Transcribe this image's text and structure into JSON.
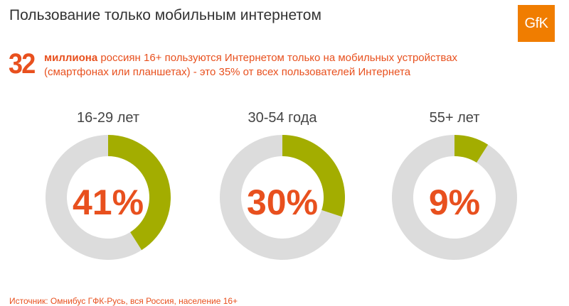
{
  "header": {
    "title": "Пользование только мобильным интернетом",
    "logo_text": "GfK"
  },
  "lead": {
    "number": "32",
    "strong": "миллиона",
    "text_line1": " россиян 16+ пользуются Интернетом только на мобильных устройствах",
    "text_line2": "(смартфонах или планшетах) - это 35% от всех пользователей Интернета"
  },
  "chart_data": {
    "type": "pie",
    "subtype": "donut",
    "charts": [
      {
        "category": "16-29 лет",
        "value": 41,
        "label": "41%"
      },
      {
        "category": "30-54 года",
        "value": 30,
        "label": "30%"
      },
      {
        "category": "55+ лет",
        "value": 9,
        "label": "9%"
      }
    ],
    "colors": {
      "value": "#a3ad00",
      "remainder": "#dcdcdc",
      "label": "#e8501e"
    }
  },
  "footer": {
    "source": "Источник: Омнибус ГФК-Русь, вся Россия, население 16+"
  }
}
